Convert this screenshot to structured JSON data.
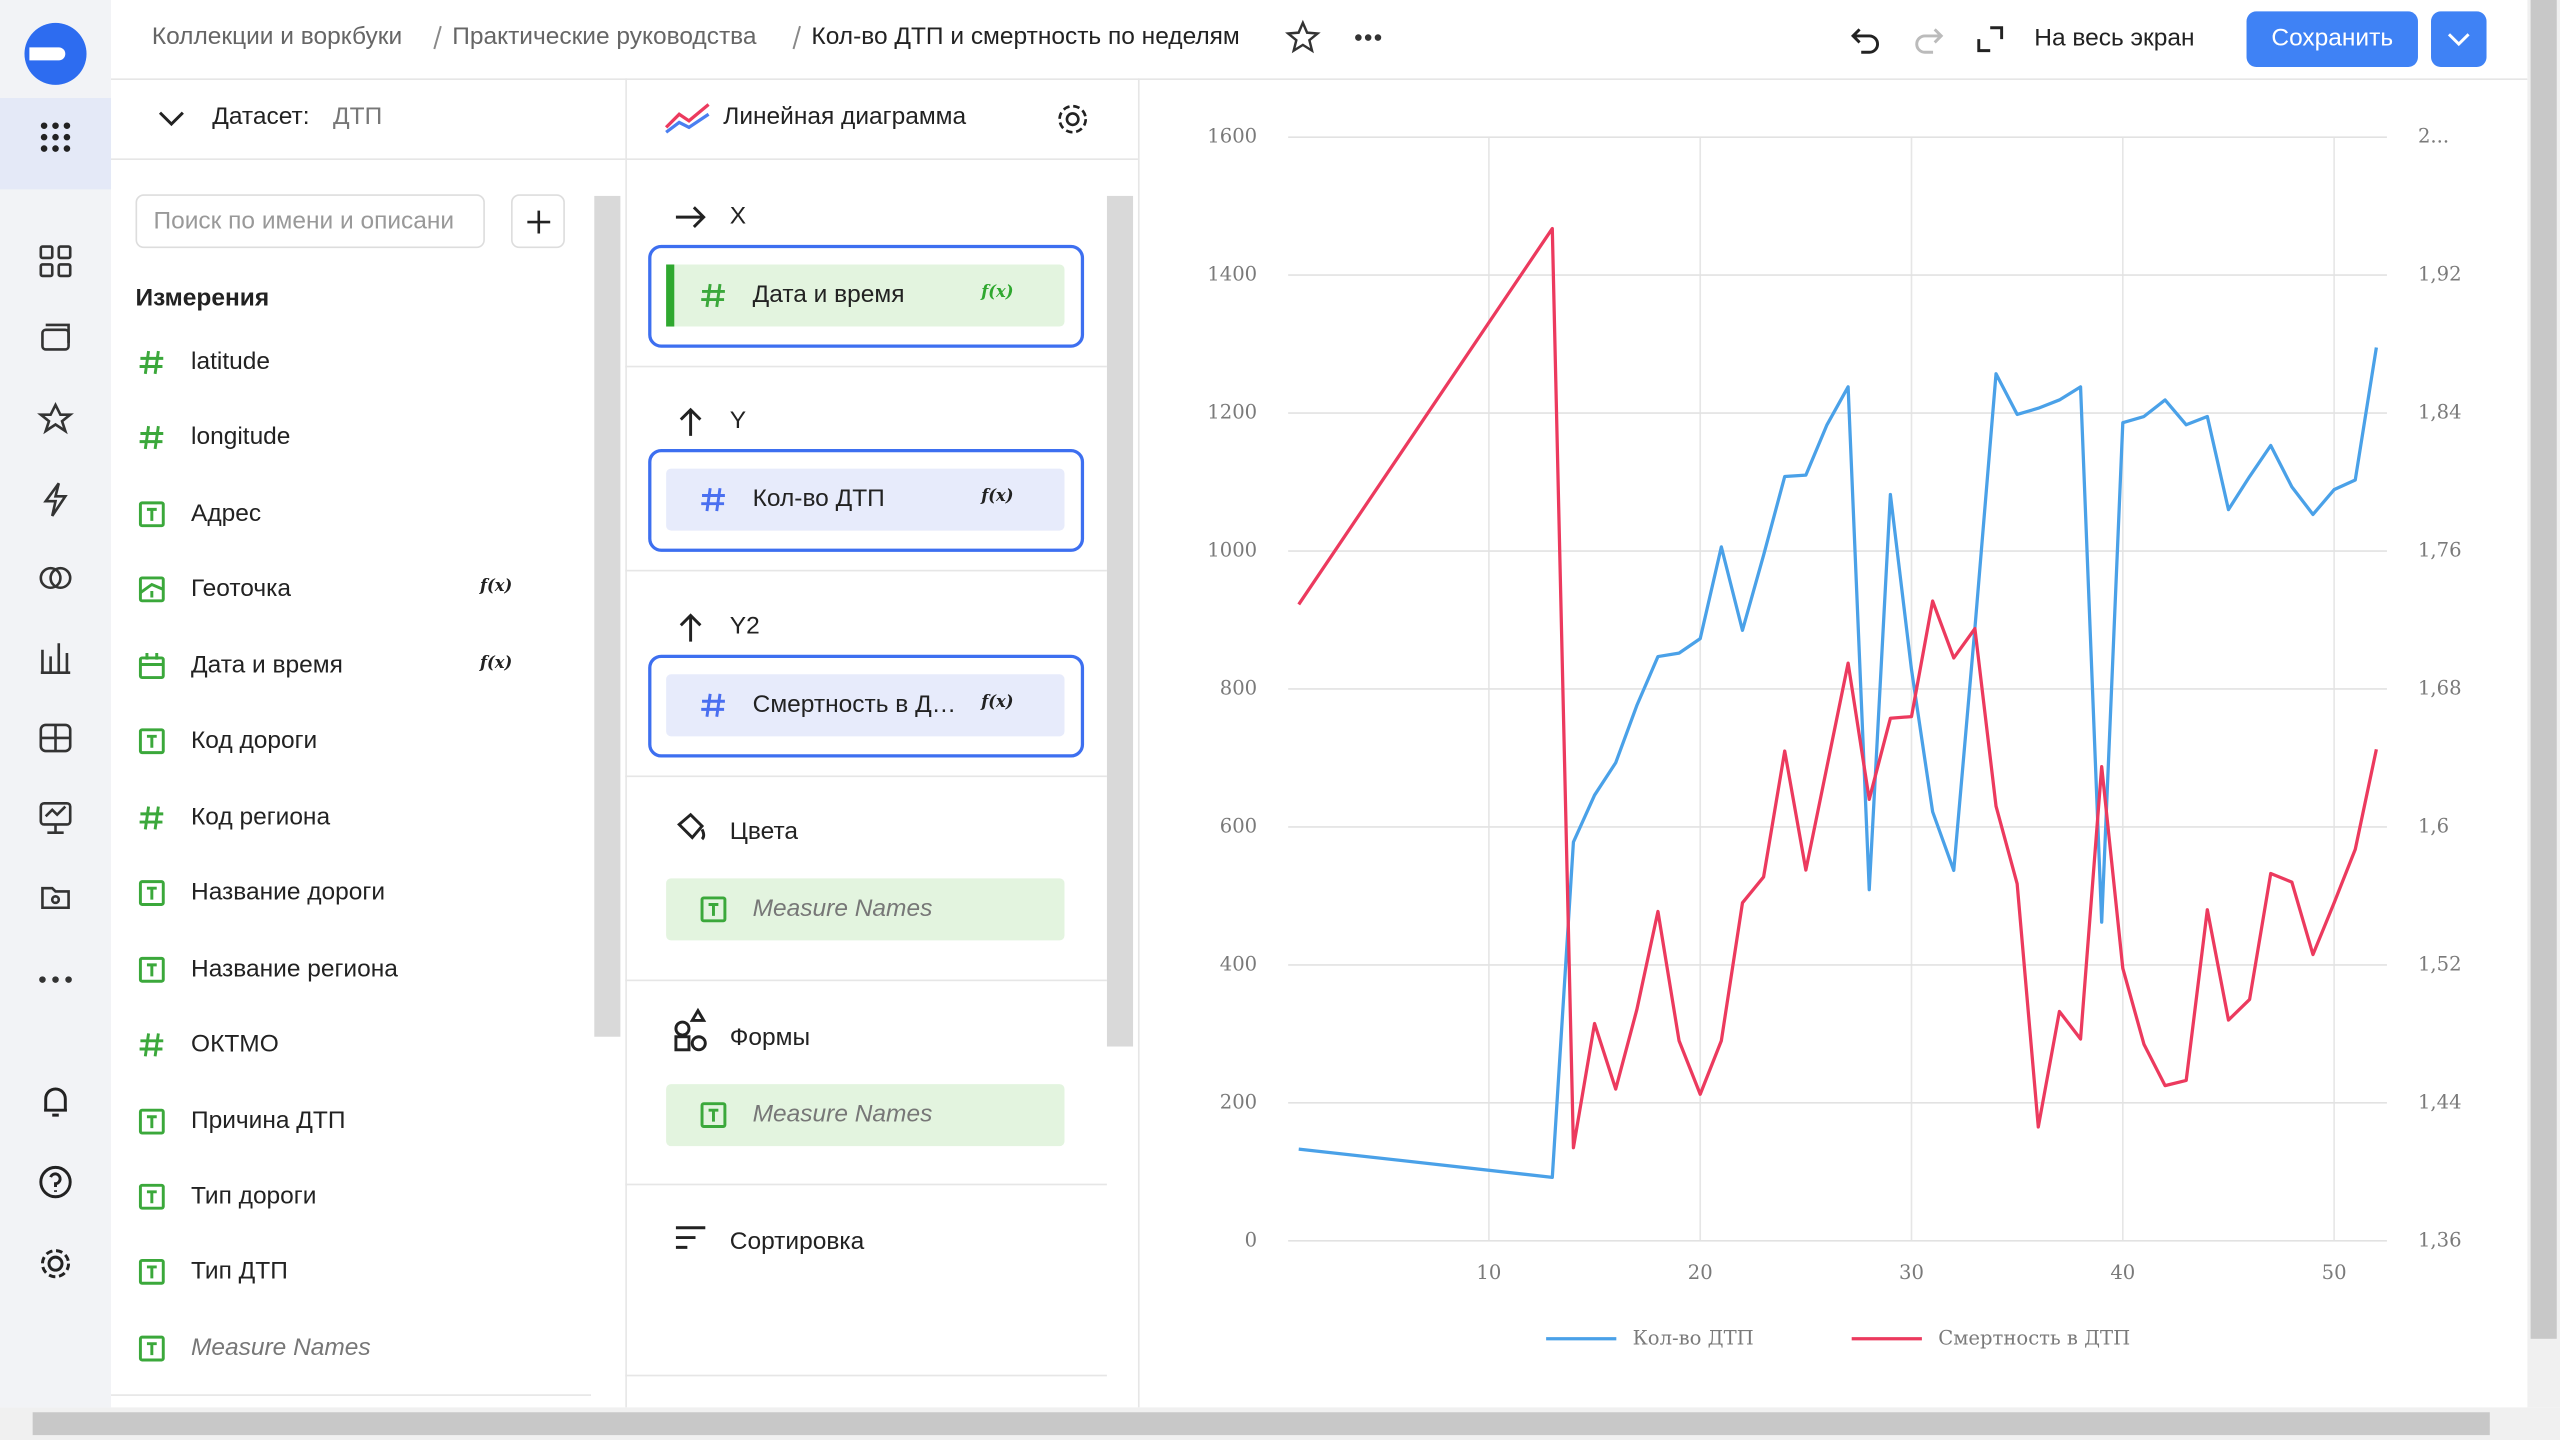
{
  "header": {
    "breadcrumbs": [
      "Коллекции и воркбуки",
      "Практические руководства"
    ],
    "title": "Кол-во ДТП и смертность по неделям",
    "fullscreen": "На весь экран",
    "save": "Сохранить"
  },
  "dataset": {
    "label": "Датасет:",
    "name": "ДТП",
    "search_placeholder": "Поиск по имени и описани",
    "section": "Измерения",
    "fields": [
      {
        "name": "latitude"
      },
      {
        "name": "longitude"
      },
      {
        "name": "Адрес"
      },
      {
        "name": "Геоточка",
        "badge": "f(x)"
      },
      {
        "name": "Дата и время",
        "badge": "f(x)"
      },
      {
        "name": "Код дороги"
      },
      {
        "name": "Код региона"
      },
      {
        "name": "Название дороги"
      },
      {
        "name": "Название региона"
      },
      {
        "name": "ОКТМО"
      },
      {
        "name": "Причина ДТП"
      },
      {
        "name": "Тип дороги"
      },
      {
        "name": "Тип ДТП"
      },
      {
        "name": "Measure Names"
      }
    ]
  },
  "wizard": {
    "chart_type": "Линейная диаграмма",
    "sections": [
      {
        "title": "X",
        "items": [
          {
            "name": "Дата и время",
            "badge": "f(x)"
          }
        ]
      },
      {
        "title": "Y",
        "items": [
          {
            "name": "Кол-во ДТП",
            "badge": "f(x)"
          }
        ]
      },
      {
        "title": "Y2",
        "items": [
          {
            "name": "Смертность в Д…",
            "badge": "f(x)"
          }
        ]
      },
      {
        "title": "Цвета",
        "items": [
          {
            "name": "Measure Names"
          }
        ]
      },
      {
        "title": "Формы",
        "items": [
          {
            "name": "Measure Names"
          }
        ]
      },
      {
        "title": "Сортировка",
        "items": []
      }
    ]
  },
  "chart_data": {
    "type": "line",
    "x": [
      1,
      13,
      14,
      15,
      16,
      17,
      18,
      19,
      20,
      21,
      22,
      23,
      24,
      25,
      26,
      27,
      28,
      29,
      30,
      31,
      32,
      33,
      34,
      35,
      36,
      37,
      38,
      39,
      40,
      41,
      42,
      43,
      44,
      45,
      46,
      47,
      48,
      49,
      50,
      51,
      52
    ],
    "series": [
      {
        "name": "Кол-во ДТП",
        "color": "#4aa1e8",
        "values": [
          133,
          92,
          578,
          646,
          693,
          776,
          847,
          852,
          873,
          1006,
          885,
          994,
          1108,
          1110,
          1183,
          1238,
          509,
          1082,
          828,
          622,
          537,
          888,
          1257,
          1198,
          1207,
          1219,
          1238,
          462,
          1186,
          1195,
          1219,
          1183,
          1195,
          1060,
          1108,
          1153,
          1093,
          1053,
          1089,
          1103,
          1295
        ]
      },
      {
        "name": "Смертность в ДТП",
        "color": "#ec3a5e",
        "axis": "y2",
        "values": [
          1.729,
          1.947,
          1.414,
          1.486,
          1.448,
          1.494,
          1.551,
          1.476,
          1.445,
          1.476,
          1.556,
          1.571,
          1.644,
          1.575,
          1.635,
          1.695,
          1.616,
          1.663,
          1.664,
          1.731,
          1.698,
          1.715,
          1.612,
          1.567,
          1.426,
          1.493,
          1.477,
          1.635,
          1.518,
          1.474,
          1.45,
          1.453,
          1.552,
          1.488,
          1.5,
          1.573,
          1.568,
          1.526,
          1.556,
          1.587,
          1.645
        ]
      }
    ],
    "xlim": [
      0.5,
      52.5
    ],
    "xticks": [
      10,
      20,
      30,
      40,
      50
    ],
    "ylim": [
      0,
      1600
    ],
    "yticks": [
      0,
      200,
      400,
      600,
      800,
      1000,
      1200,
      1400,
      1600
    ],
    "y2lim": [
      1.36,
      2.0
    ],
    "y2ticks": [
      {
        "value": 1.36,
        "label": "1,36"
      },
      {
        "value": 1.44,
        "label": "1,44"
      },
      {
        "value": 1.52,
        "label": "1,52"
      },
      {
        "value": 1.6,
        "label": "1,6"
      },
      {
        "value": 1.68,
        "label": "1,68"
      },
      {
        "value": 1.76,
        "label": "1,76"
      },
      {
        "value": 1.84,
        "label": "1,84"
      },
      {
        "value": 1.92,
        "label": "1,92"
      },
      {
        "value": 2.0,
        "label": "2..."
      }
    ],
    "grid": true,
    "legend": "bottom"
  }
}
